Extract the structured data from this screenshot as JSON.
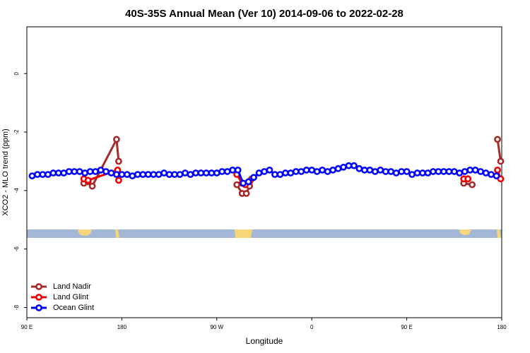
{
  "chart_data": {
    "type": "line",
    "title": "40S-35S Annual Mean (Ver 10)   2014-09-06 to 2022-02-28",
    "x_label": "Longitude",
    "y_label": "XCO2 - MLO trend (ppm)",
    "xlim": [
      90,
      540
    ],
    "ylim": [
      -8.35,
      1.6
    ],
    "xticks": [
      {
        "value": 90,
        "label": "90 E"
      },
      180,
      {
        "value": 270,
        "label": "90 W"
      },
      {
        "value": 360,
        "label": "0"
      },
      {
        "value": 450,
        "label": "90 E"
      },
      {
        "value": 540,
        "label": "180"
      }
    ],
    "yticks": [
      0,
      -2,
      -4,
      -6,
      -8
    ],
    "legend": "bottomleft",
    "series": [
      {
        "name": "Land Nadir",
        "color": "#a52a2a",
        "x": [
          144,
          148,
          152,
          175,
          177,
          230,
          289,
          294,
          298,
          301,
          303,
          400,
          504,
          512,
          525,
          536,
          539
        ],
        "values": [
          -3.75,
          -3.7,
          -3.85,
          -2.25,
          -3.0,
          null,
          -3.8,
          -4.1,
          -4.1,
          -3.85,
          -3.6,
          null,
          -3.75,
          -3.8,
          null,
          -2.25,
          -3.0
        ]
      },
      {
        "name": "Land Glint",
        "color": "#ee0000",
        "x": [
          144,
          148,
          176,
          177,
          230,
          289,
          294,
          297,
          301,
          400,
          504,
          508,
          525,
          536,
          539
        ],
        "values": [
          -3.6,
          -3.65,
          -3.3,
          -3.65,
          null,
          -3.45,
          -3.75,
          -3.8,
          -3.7,
          null,
          -3.6,
          -3.6,
          null,
          -3.3,
          -3.6
        ]
      },
      {
        "name": "Ocean Glint",
        "color": "#0000ff",
        "x": [
          95,
          100,
          105,
          110,
          115,
          120,
          125,
          130,
          135,
          140,
          145,
          150,
          155,
          160,
          165,
          170,
          175,
          180,
          185,
          190,
          195,
          200,
          205,
          210,
          215,
          220,
          225,
          230,
          235,
          240,
          245,
          250,
          255,
          260,
          265,
          270,
          275,
          280,
          285,
          290,
          295,
          300,
          305,
          310,
          315,
          320,
          325,
          330,
          335,
          340,
          345,
          350,
          355,
          360,
          365,
          370,
          375,
          380,
          385,
          390,
          395,
          400,
          405,
          410,
          415,
          420,
          425,
          430,
          435,
          440,
          445,
          450,
          455,
          460,
          465,
          470,
          475,
          480,
          485,
          490,
          495,
          500,
          505,
          510,
          515,
          520,
          525,
          530,
          535
        ],
        "values": [
          -3.5,
          -3.45,
          -3.45,
          -3.45,
          -3.4,
          -3.4,
          -3.4,
          -3.35,
          -3.35,
          -3.35,
          -3.4,
          -3.35,
          -3.35,
          -3.3,
          -3.35,
          -3.4,
          -3.45,
          -3.45,
          -3.45,
          -3.5,
          -3.45,
          -3.45,
          -3.45,
          -3.45,
          -3.45,
          -3.4,
          -3.45,
          -3.45,
          -3.45,
          -3.4,
          -3.45,
          -3.4,
          -3.4,
          -3.4,
          -3.4,
          -3.4,
          -3.35,
          -3.35,
          -3.3,
          -3.3,
          -3.75,
          -3.7,
          -3.55,
          -3.4,
          -3.35,
          -3.3,
          -3.45,
          -3.45,
          -3.4,
          -3.4,
          -3.35,
          -3.35,
          -3.3,
          -3.3,
          -3.35,
          -3.3,
          -3.35,
          -3.3,
          -3.25,
          -3.2,
          -3.15,
          -3.15,
          -3.25,
          -3.3,
          -3.3,
          -3.35,
          -3.3,
          -3.35,
          -3.35,
          -3.4,
          -3.35,
          -3.35,
          -3.45,
          -3.4,
          -3.4,
          -3.4,
          -3.35,
          -3.35,
          -3.35,
          -3.35,
          -3.35,
          -3.4,
          -3.35,
          -3.3,
          -3.3,
          -3.35,
          -3.4,
          -3.45,
          -3.5
        ]
      }
    ]
  }
}
